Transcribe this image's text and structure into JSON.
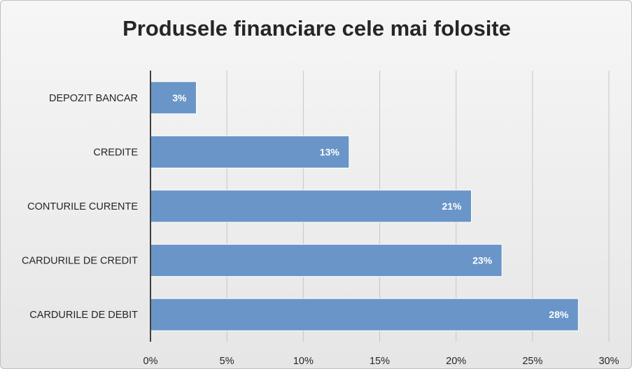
{
  "chart_data": {
    "type": "bar",
    "orientation": "horizontal",
    "title": "Produsele financiare cele mai folosite",
    "categories": [
      "DEPOZIT BANCAR",
      "CREDITE",
      "CONTURILE CURENTE",
      "CARDURILE DE CREDIT",
      "CARDURILE DE DEBIT"
    ],
    "values": [
      3,
      13,
      21,
      23,
      28
    ],
    "data_labels": [
      "3%",
      "13%",
      "21%",
      "23%",
      "28%"
    ],
    "xlim": [
      0,
      30
    ],
    "x_ticks": [
      0,
      5,
      10,
      15,
      20,
      25,
      30
    ],
    "x_tick_labels": [
      "0%",
      "5%",
      "10%",
      "15%",
      "20%",
      "25%",
      "30%"
    ],
    "xlabel": "",
    "ylabel": "",
    "grid": true,
    "legend": "none",
    "colors": {
      "bar_fill": "#6a95c8",
      "bar_stroke": "#ffffff",
      "grid": "#c6c6c6",
      "axis": "#404040",
      "title": "#262626"
    }
  }
}
